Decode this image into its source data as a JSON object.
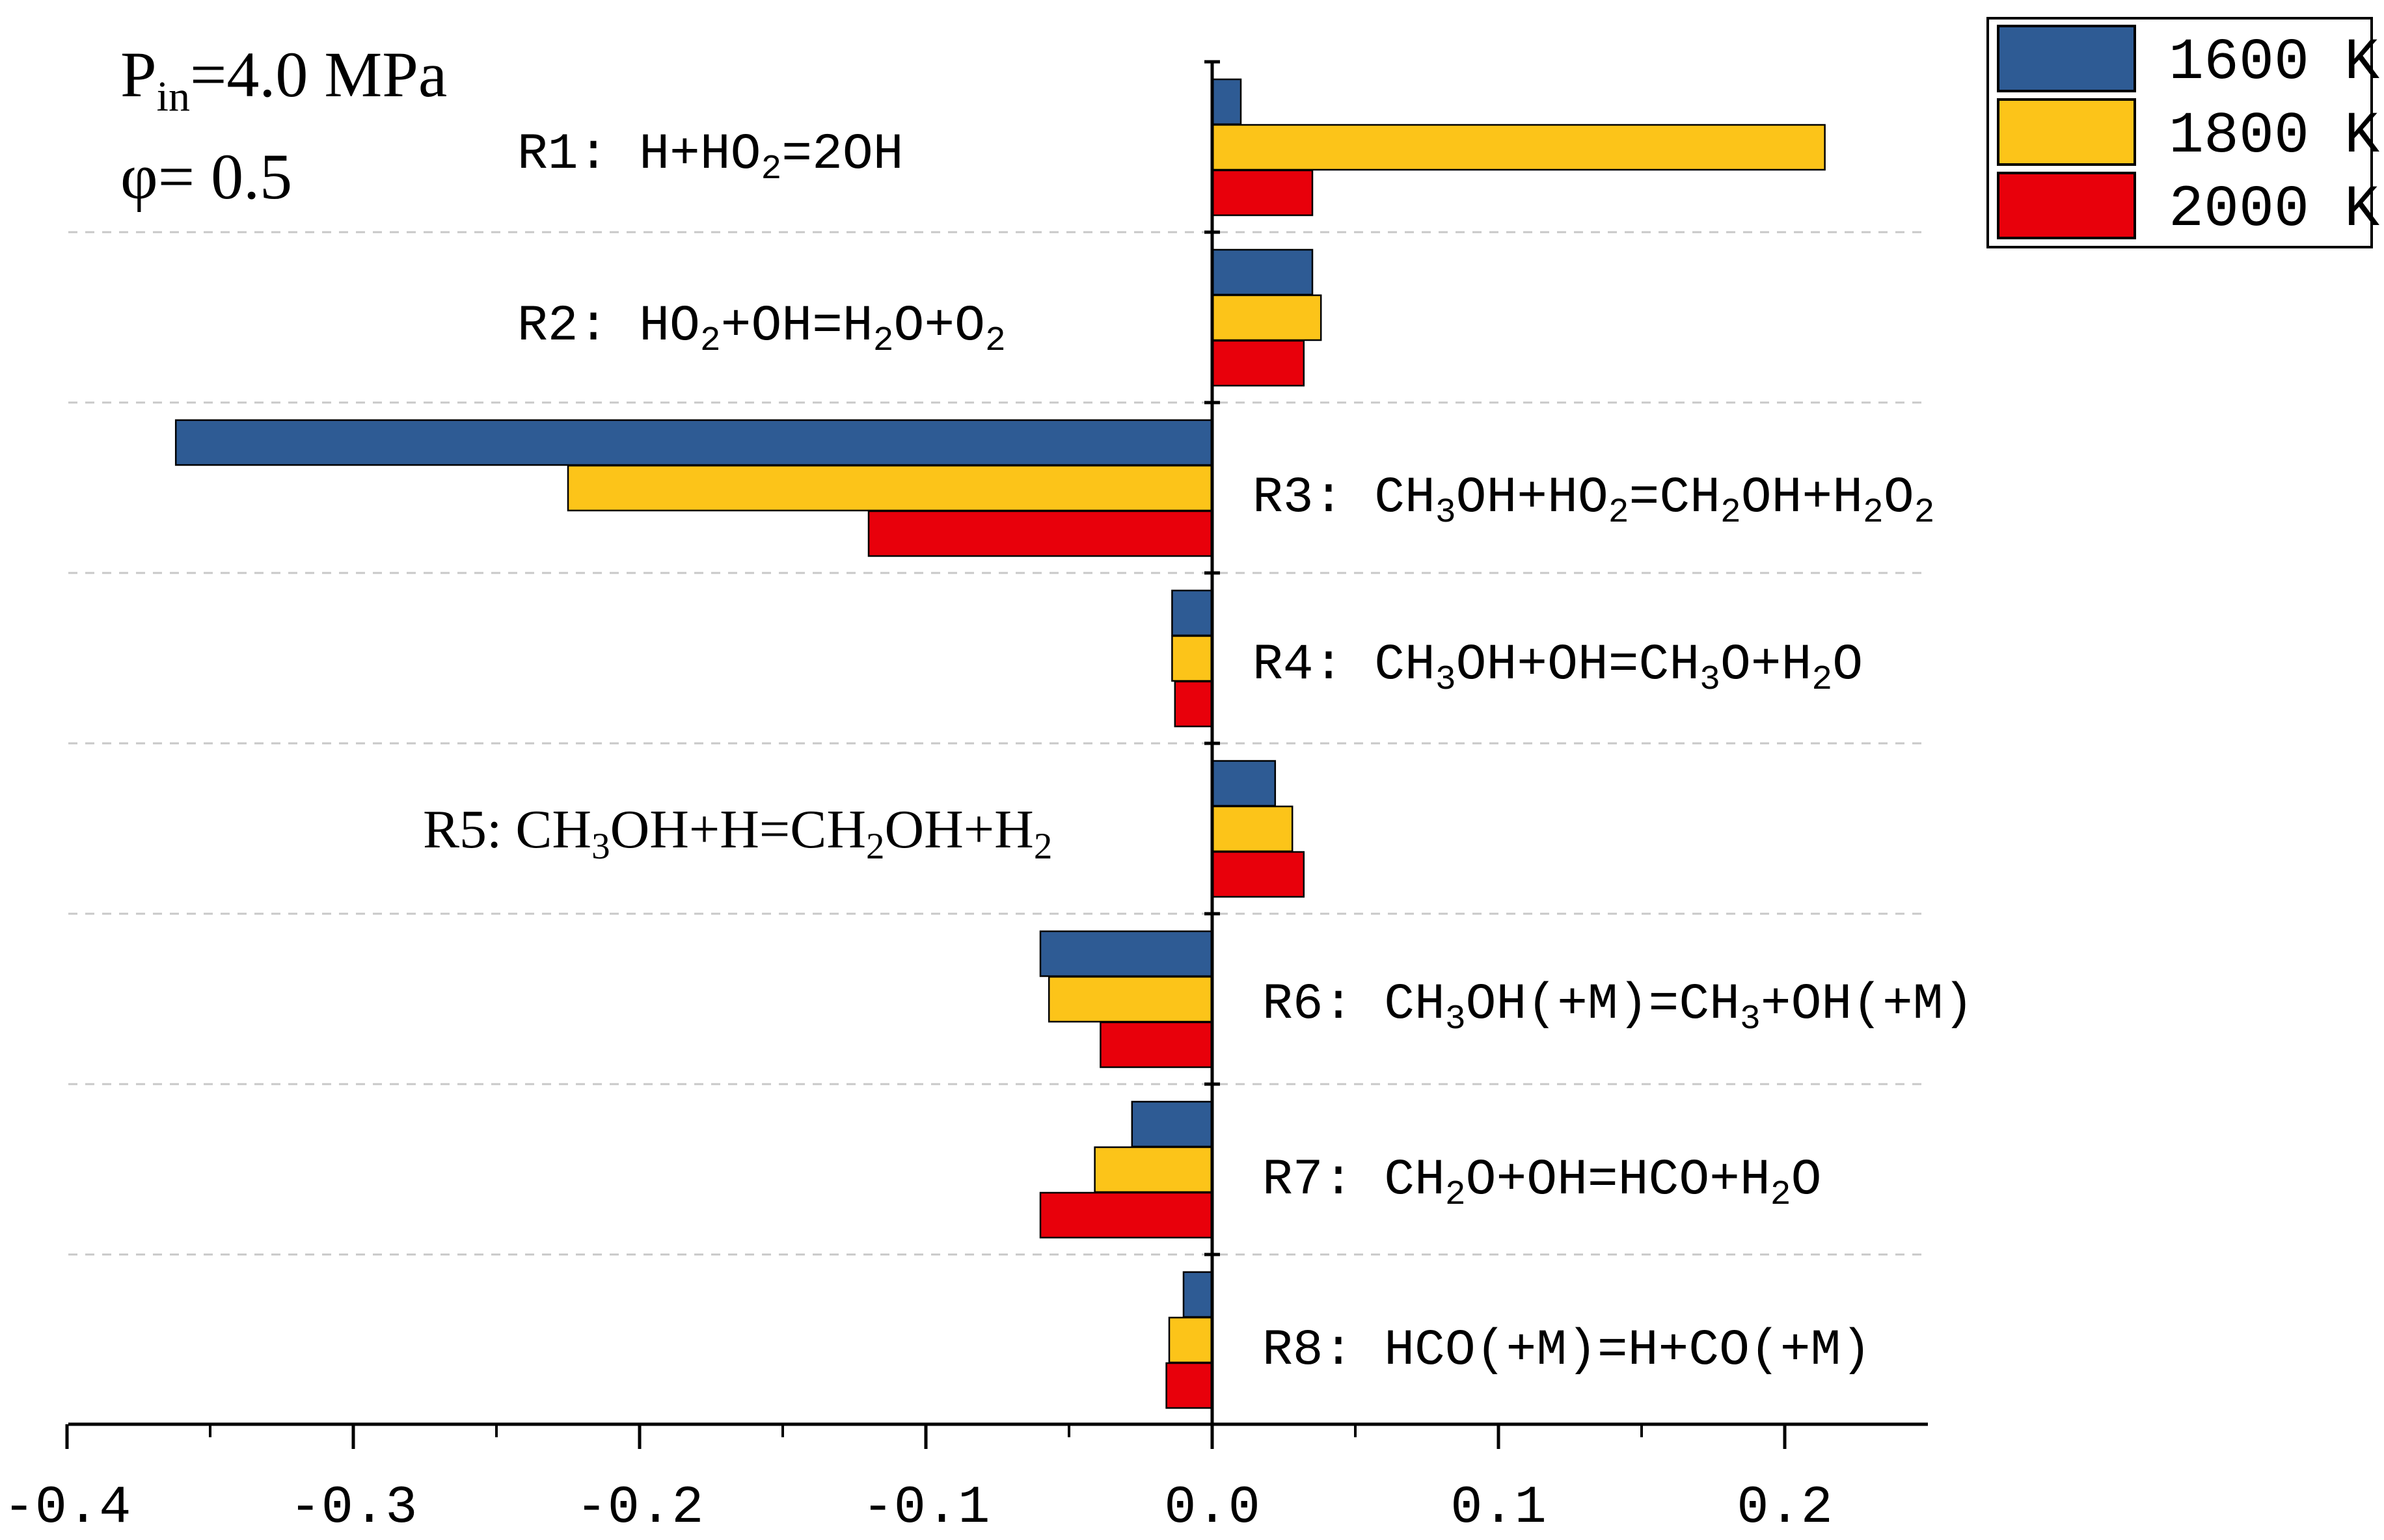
{
  "chart_data": {
    "type": "bar",
    "orientation": "horizontal",
    "annotation": {
      "pressure_symbol": "P",
      "pressure_subscript": "in",
      "pressure_value": "=4.0 MPa",
      "equivalence": "φ= 0.5"
    },
    "categories": [
      {
        "id": "R1",
        "parts": [
          [
            "R1:  H+HO",
            ""
          ],
          [
            "2",
            "sub"
          ],
          [
            "=2OH",
            ""
          ]
        ]
      },
      {
        "id": "R2",
        "parts": [
          [
            "R2:  HO",
            ""
          ],
          [
            "2",
            "sub"
          ],
          [
            "+OH=H",
            ""
          ],
          [
            "2",
            "sub"
          ],
          [
            "O+O",
            ""
          ],
          [
            "2",
            "sub"
          ]
        ]
      },
      {
        "id": "R3",
        "parts": [
          [
            "R3:  CH",
            ""
          ],
          [
            "3",
            "sub"
          ],
          [
            "OH+HO",
            ""
          ],
          [
            "2",
            "sub"
          ],
          [
            "=CH",
            ""
          ],
          [
            "2",
            "sub"
          ],
          [
            "OH+H",
            ""
          ],
          [
            "2",
            "sub"
          ],
          [
            "O",
            ""
          ],
          [
            "2",
            "sub"
          ]
        ]
      },
      {
        "id": "R4",
        "parts": [
          [
            "R4:  CH",
            ""
          ],
          [
            "3",
            "sub"
          ],
          [
            "OH+OH=CH",
            ""
          ],
          [
            "3",
            "sub"
          ],
          [
            "O+H",
            ""
          ],
          [
            "2",
            "sub"
          ],
          [
            "O",
            ""
          ]
        ]
      },
      {
        "id": "R5",
        "parts": [
          [
            "R5: CH",
            ""
          ],
          [
            "3",
            "sub"
          ],
          [
            "OH+H=CH",
            ""
          ],
          [
            "2",
            "sub"
          ],
          [
            "OH+H",
            ""
          ],
          [
            "2",
            "sub"
          ]
        ]
      },
      {
        "id": "R6",
        "parts": [
          [
            "R6:  CH",
            ""
          ],
          [
            "3",
            "sub"
          ],
          [
            "OH(+M)=CH",
            ""
          ],
          [
            "3",
            "sub"
          ],
          [
            "+OH(+M)",
            ""
          ]
        ]
      },
      {
        "id": "R7",
        "parts": [
          [
            "R7:  CH",
            ""
          ],
          [
            "2",
            "sub"
          ],
          [
            "O+OH=HCO+H",
            ""
          ],
          [
            "2",
            "sub"
          ],
          [
            "O",
            ""
          ]
        ]
      },
      {
        "id": "R8",
        "parts": [
          [
            "R8:  HCO(+M)=H+CO(+M)",
            ""
          ]
        ]
      }
    ],
    "series": [
      {
        "name": "1600  K",
        "color": "#2e5b94",
        "values": [
          0.01,
          0.035,
          -0.362,
          -0.014,
          0.022,
          -0.06,
          -0.028,
          -0.01
        ]
      },
      {
        "name": "1800  K",
        "color": "#fcc419",
        "values": [
          0.214,
          0.038,
          -0.225,
          -0.014,
          0.028,
          -0.057,
          -0.041,
          -0.015
        ]
      },
      {
        "name": "2000  K",
        "color": "#e8000b",
        "values": [
          0.035,
          0.032,
          -0.12,
          -0.013,
          0.032,
          -0.039,
          -0.06,
          -0.016
        ]
      }
    ],
    "xlim": [
      -0.4,
      0.25
    ],
    "xticks": [
      -0.4,
      -0.3,
      -0.2,
      -0.1,
      0.0,
      0.1,
      0.2
    ],
    "xtick_labels": [
      "-0.4",
      "-0.3",
      "-0.2",
      "-0.1",
      "0.0",
      "0.1",
      "0.2"
    ],
    "xlabel": "",
    "ylabel": "",
    "separators": "dashed",
    "legend_position": "top-right"
  }
}
